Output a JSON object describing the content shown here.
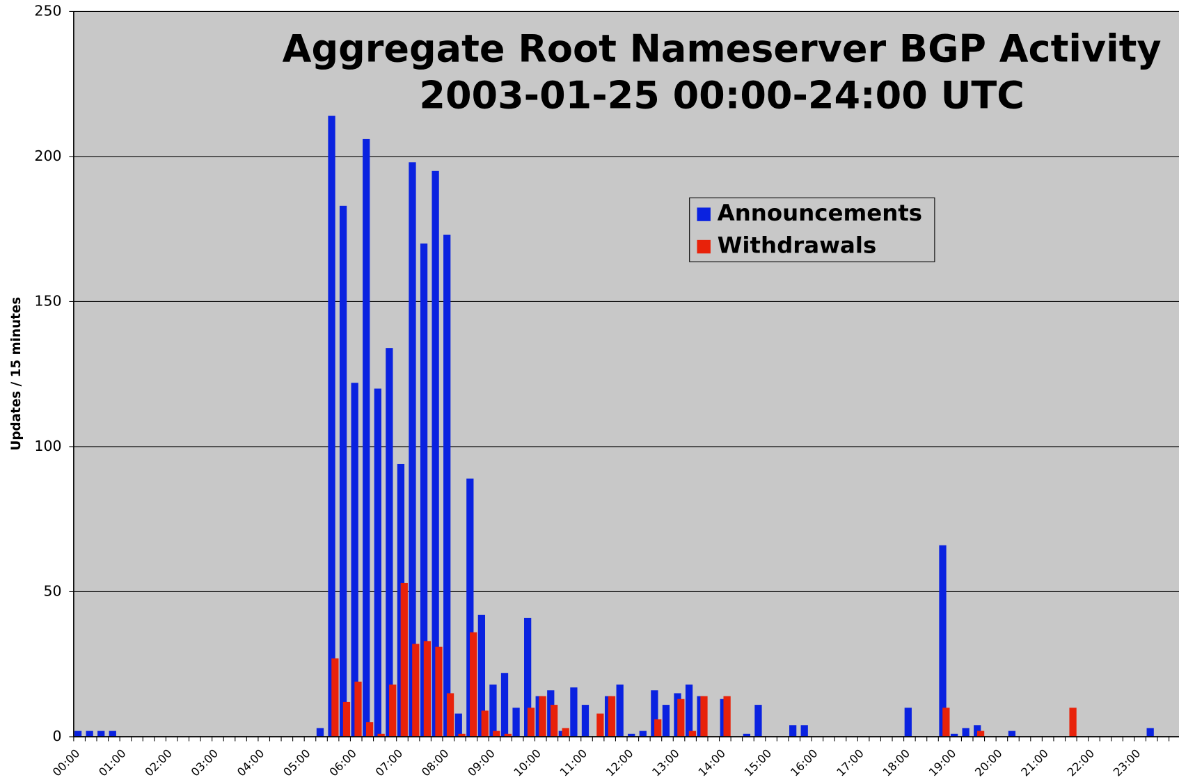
{
  "chart_data": {
    "type": "bar",
    "title": "Aggregate Root Nameserver BGP Activity",
    "subtitle": "2003-01-25 00:00-24:00 UTC",
    "y_label": "Updates / 15 minutes",
    "categories": [
      "00:00",
      null,
      null,
      null,
      "01:00",
      null,
      null,
      null,
      "02:00",
      null,
      null,
      null,
      "03:00",
      null,
      null,
      null,
      "04:00",
      null,
      null,
      null,
      "05:00",
      null,
      null,
      null,
      "06:00",
      null,
      null,
      null,
      "07:00",
      null,
      null,
      null,
      "08:00",
      null,
      null,
      null,
      "09:00",
      null,
      null,
      null,
      "10:00",
      null,
      null,
      null,
      "11:00",
      null,
      null,
      null,
      "12:00",
      null,
      null,
      null,
      "13:00",
      null,
      null,
      null,
      "14:00",
      null,
      null,
      null,
      "15:00",
      null,
      null,
      null,
      "16:00",
      null,
      null,
      null,
      "17:00",
      null,
      null,
      null,
      "18:00",
      null,
      null,
      null,
      "19:00",
      null,
      null,
      null,
      "20:00",
      null,
      null,
      null,
      "21:00",
      null,
      null,
      null,
      "22:00",
      null,
      null,
      null,
      "23:00",
      null,
      null,
      null
    ],
    "series": [
      {
        "name": "Announcements",
        "color": "#0a22e0",
        "values": [
          2,
          2,
          2,
          2,
          0,
          0,
          0,
          0,
          0,
          0,
          0,
          0,
          0,
          0,
          0,
          0,
          0,
          0,
          0,
          0,
          0,
          3,
          214,
          183,
          122,
          206,
          120,
          134,
          94,
          198,
          170,
          195,
          173,
          8,
          89,
          42,
          18,
          22,
          10,
          41,
          14,
          16,
          2,
          17,
          11,
          0,
          14,
          18,
          1,
          2,
          16,
          11,
          15,
          18,
          14,
          0,
          13,
          0,
          1,
          11,
          0,
          0,
          4,
          4,
          0,
          0,
          0,
          0,
          0,
          0,
          0,
          0,
          10,
          0,
          0,
          66,
          1,
          3,
          4,
          0,
          0,
          2,
          0,
          0,
          0,
          0,
          0,
          0,
          0,
          0,
          0,
          0,
          0,
          3,
          0,
          0
        ]
      },
      {
        "name": "Withdrawals",
        "color": "#e8220a",
        "values": [
          0,
          0,
          0,
          0,
          0,
          0,
          0,
          0,
          0,
          0,
          0,
          0,
          0,
          0,
          0,
          0,
          0,
          0,
          0,
          0,
          0,
          0,
          27,
          12,
          19,
          5,
          1,
          18,
          53,
          32,
          33,
          31,
          15,
          1,
          36,
          9,
          2,
          1,
          0,
          10,
          14,
          11,
          3,
          0,
          0,
          8,
          14,
          0,
          0,
          0,
          6,
          0,
          13,
          2,
          14,
          0,
          14,
          0,
          0,
          0,
          0,
          0,
          0,
          0,
          0,
          0,
          0,
          0,
          0,
          0,
          0,
          0,
          0,
          0,
          0,
          10,
          0,
          0,
          2,
          0,
          0,
          0,
          0,
          0,
          0,
          0,
          10,
          0,
          0,
          0,
          0,
          0,
          0,
          0,
          0,
          0
        ]
      }
    ],
    "ylim": [
      0,
      250
    ],
    "yticks": [
      0,
      50,
      100,
      150,
      200,
      250
    ],
    "grid": true,
    "legend": "upper right"
  }
}
